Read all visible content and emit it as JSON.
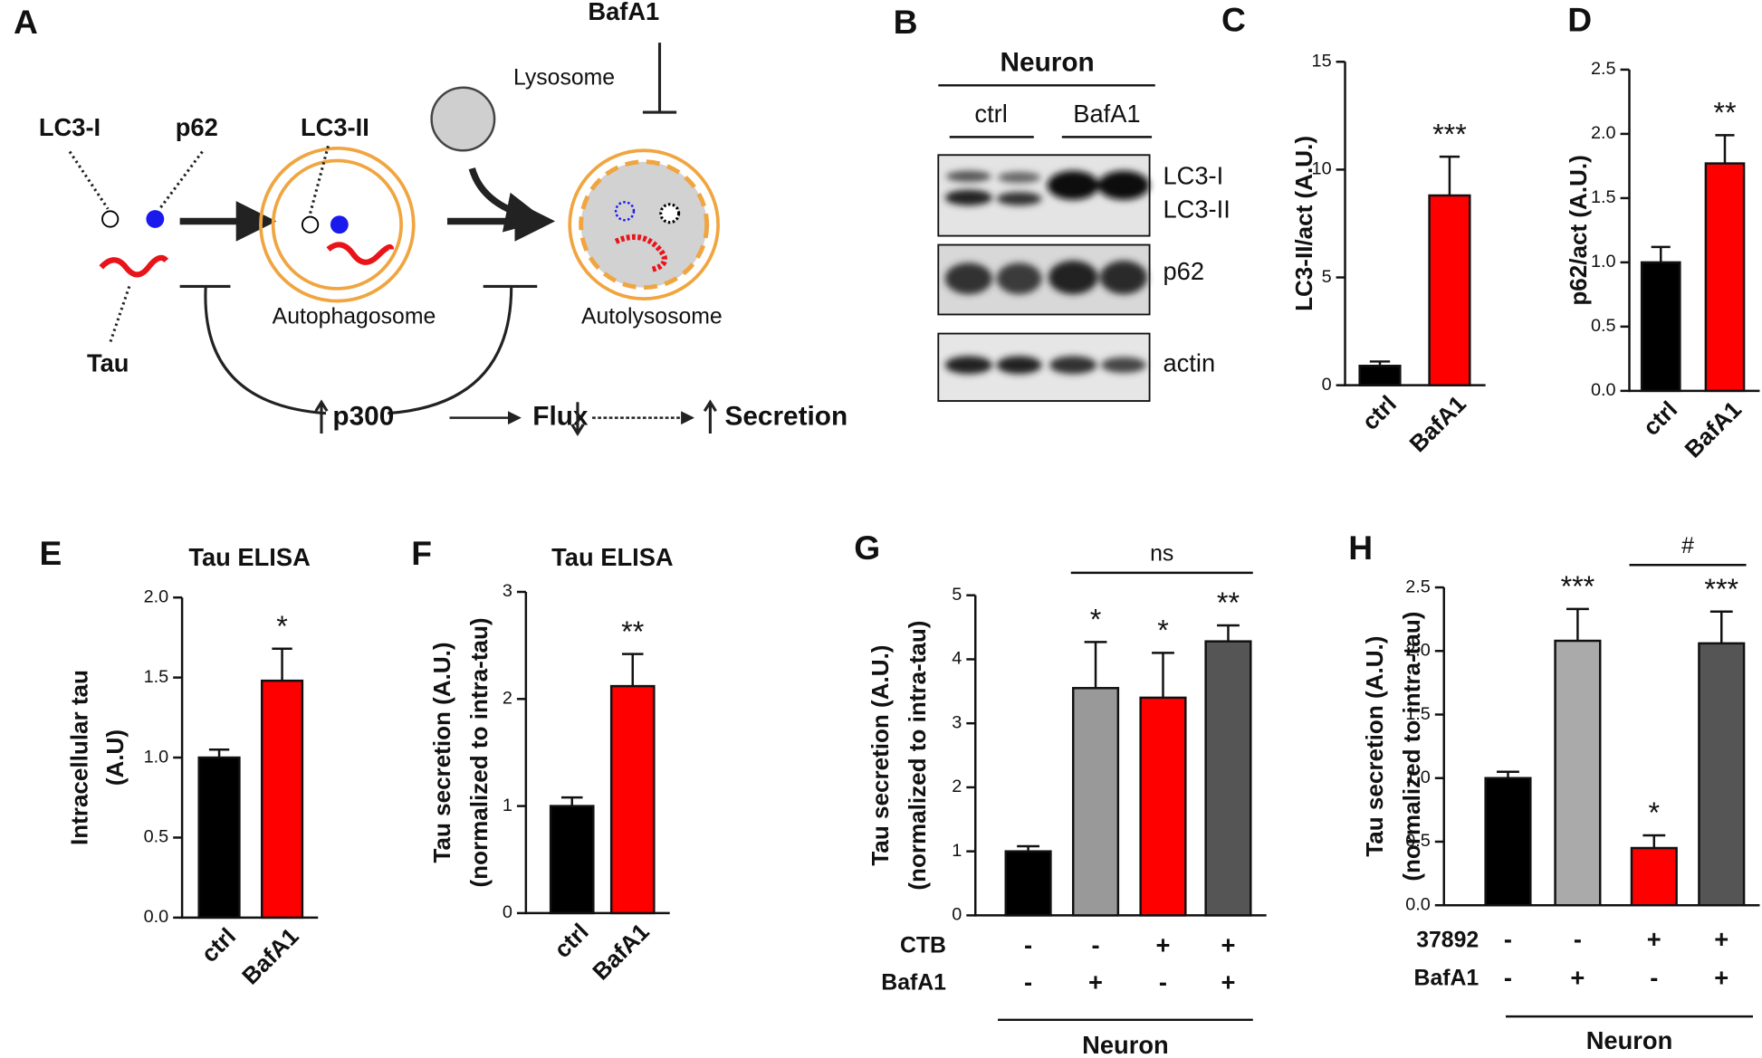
{
  "diagram": {
    "panel": "A",
    "lc3i": "LC3-I",
    "p62": "p62",
    "lc3ii": "LC3-II",
    "tau": "Tau",
    "bafa1": "BafA1",
    "lysosome": "Lysosome",
    "autophagosome": "Autophagosome",
    "autolysosome": "Autolysosome",
    "p300": "p300",
    "flux": "Flux",
    "secretion": "Secretion"
  },
  "blot": {
    "panel": "B",
    "title": "Neuron",
    "groups": [
      "ctrl",
      "BafA1"
    ],
    "rows": [
      "LC3-I",
      "LC3-II",
      "p62",
      "actin"
    ]
  },
  "chart_data": [
    {
      "type": "bar",
      "panel": "C",
      "ylabel": "LC3-II/act (A.U.)",
      "categories": [
        "ctrl",
        "BafA1"
      ],
      "values": [
        0.9,
        8.8
      ],
      "errors": [
        0.2,
        1.8
      ],
      "annotations": [
        null,
        "***"
      ],
      "colors": [
        "#000000",
        "#ff0000"
      ],
      "ylim": [
        0,
        15
      ],
      "yticks": [
        0,
        5,
        10,
        15
      ]
    },
    {
      "type": "bar",
      "panel": "D",
      "ylabel": "p62/act (A.U.)",
      "categories": [
        "ctrl",
        "BafA1"
      ],
      "values": [
        1.0,
        1.77
      ],
      "errors": [
        0.12,
        0.22
      ],
      "annotations": [
        null,
        "**"
      ],
      "colors": [
        "#000000",
        "#ff0000"
      ],
      "ylim": [
        0,
        2.5
      ],
      "yticks": [
        {
          "value": 0,
          "label": "0.0"
        },
        0.5,
        {
          "value": 1,
          "label": "1.0"
        },
        1.5,
        {
          "value": 2,
          "label": "2.0"
        },
        2.5
      ]
    },
    {
      "type": "bar",
      "panel": "E",
      "title": "Tau ELISA",
      "ylabel": [
        "Intracellular tau",
        "(A.U)"
      ],
      "categories": [
        "ctrl",
        "BafA1"
      ],
      "values": [
        1.0,
        1.48
      ],
      "errors": [
        0.05,
        0.2
      ],
      "annotations": [
        null,
        "*"
      ],
      "colors": [
        "#000000",
        "#ff0000"
      ],
      "ylim": [
        0,
        2
      ],
      "yticks": [
        {
          "value": 0,
          "label": "0.0"
        },
        0.5,
        {
          "value": 1,
          "label": "1.0"
        },
        1.5,
        {
          "value": 2,
          "label": "2.0"
        }
      ]
    },
    {
      "type": "bar",
      "panel": "F",
      "title": "Tau ELISA",
      "ylabel": [
        "Tau secretion (A.U.)",
        "(normalized to intra-tau)"
      ],
      "categories": [
        "ctrl",
        "BafA1"
      ],
      "values": [
        1.0,
        2.12
      ],
      "errors": [
        0.08,
        0.3
      ],
      "annotations": [
        null,
        "**"
      ],
      "colors": [
        "#000000",
        "#ff0000"
      ],
      "ylim": [
        0,
        3
      ],
      "yticks": [
        0,
        1,
        2,
        3
      ]
    },
    {
      "type": "bar",
      "panel": "G",
      "ylabel": [
        "Tau secretion (A.U.)",
        "(normalized to intra-tau)"
      ],
      "values": [
        1.0,
        3.55,
        3.4,
        4.28
      ],
      "errors": [
        0.08,
        0.72,
        0.7,
        0.25
      ],
      "annotations": [
        null,
        "*",
        "*",
        "**"
      ],
      "colors": [
        "#000000",
        "#999999",
        "#ff0000",
        "#555555"
      ],
      "ylim": [
        0,
        5
      ],
      "yticks": [
        0,
        1,
        2,
        3,
        4,
        5
      ],
      "bracket": {
        "from": 1,
        "to": 3,
        "label": "ns"
      },
      "conditions": [
        {
          "name": "CTB",
          "values": [
            "-",
            "-",
            "+",
            "+"
          ]
        },
        {
          "name": "BafA1",
          "values": [
            "-",
            "+",
            "-",
            "+"
          ]
        }
      ],
      "group_label": "Neuron"
    },
    {
      "type": "bar",
      "panel": "H",
      "ylabel": [
        "Tau secretion (A.U.)",
        "(normalized to intra-tau)"
      ],
      "values": [
        1.0,
        2.08,
        0.45,
        2.06
      ],
      "errors": [
        0.05,
        0.25,
        0.1,
        0.25
      ],
      "annotations": [
        null,
        "***",
        "*",
        "***"
      ],
      "colors": [
        "#000000",
        "#aaaaaa",
        "#ff0000",
        "#555555"
      ],
      "ylim": [
        0,
        2.5
      ],
      "yticks": [
        {
          "value": 0,
          "label": "0.0"
        },
        0.5,
        {
          "value": 1,
          "label": "1.0"
        },
        1.5,
        {
          "value": 2,
          "label": "2.0"
        },
        2.5
      ],
      "bracket": {
        "from": 2,
        "to": 3,
        "label": "#"
      },
      "conditions": [
        {
          "name": "37892",
          "values": [
            "-",
            "-",
            "+",
            "+"
          ]
        },
        {
          "name": "BafA1",
          "values": [
            "-",
            "+",
            "-",
            "+"
          ]
        }
      ],
      "group_label": "Neuron"
    }
  ]
}
